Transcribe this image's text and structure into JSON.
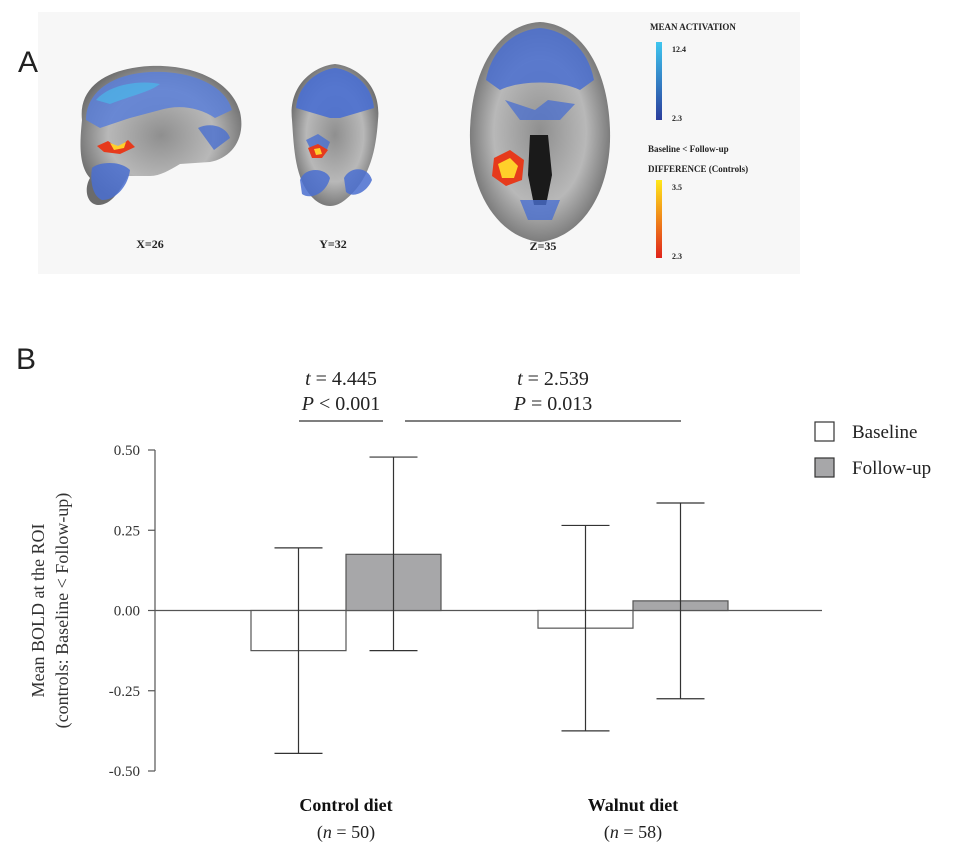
{
  "panel_a": {
    "letter": "A",
    "slices": [
      {
        "label": "X=26",
        "view": "sagittal-brain-image"
      },
      {
        "label": "Y=32",
        "view": "coronal-brain-image"
      },
      {
        "label": "Z=35",
        "view": "axial-brain-image"
      }
    ],
    "legend": {
      "mean_title": "MEAN ACTIVATION",
      "mean_max": "12.4",
      "mean_min": "2.3",
      "mean_colors": [
        "#3ec6ef",
        "#2b3d9c"
      ],
      "diff_title_1": "Baseline < Follow-up",
      "diff_title_2": "DIFFERENCE (Controls)",
      "diff_max": "3.5",
      "diff_min": "2.3",
      "diff_colors": [
        "#ffe81a",
        "#e0231b"
      ]
    }
  },
  "panel_b": {
    "letter": "B"
  },
  "chart_data": {
    "type": "bar",
    "ylabel_line1": "Mean BOLD at the ROI",
    "ylabel_line2": "(controls: Baseline < Follow-up)",
    "ylim": [
      -0.5,
      0.5
    ],
    "yticks": [
      "0.50",
      "0.25",
      "0.00",
      "-0.25",
      "-0.50"
    ],
    "ytick_values": [
      0.5,
      0.25,
      0.0,
      -0.25,
      -0.5
    ],
    "categories": [
      {
        "label": "Control diet",
        "n_prefix": "(",
        "n_var": "n",
        "n_rest": " = 50)"
      },
      {
        "label": "Walnut diet",
        "n_prefix": "(",
        "n_var": "n",
        "n_rest": " = 58)"
      }
    ],
    "series": [
      {
        "name": "Baseline",
        "color": "#ffffff",
        "values": [
          -0.125,
          -0.055
        ],
        "err_upper": [
          0.195,
          0.265
        ],
        "err_lower": [
          -0.445,
          -0.375
        ]
      },
      {
        "name": "Follow-up",
        "color": "#a7a7a9",
        "values": [
          0.175,
          0.03
        ],
        "err_upper": [
          0.478,
          0.335
        ],
        "err_lower": [
          -0.125,
          -0.275
        ]
      }
    ],
    "comparisons": [
      {
        "t_var": "t",
        "t_rest": " = 4.445",
        "p_var": "P",
        "p_rest": " < 0.001"
      },
      {
        "t_var": "t",
        "t_rest": " = 2.539",
        "p_var": "P",
        "p_rest": " = 0.013"
      }
    ],
    "legend_position": "top-right",
    "grid": false
  }
}
